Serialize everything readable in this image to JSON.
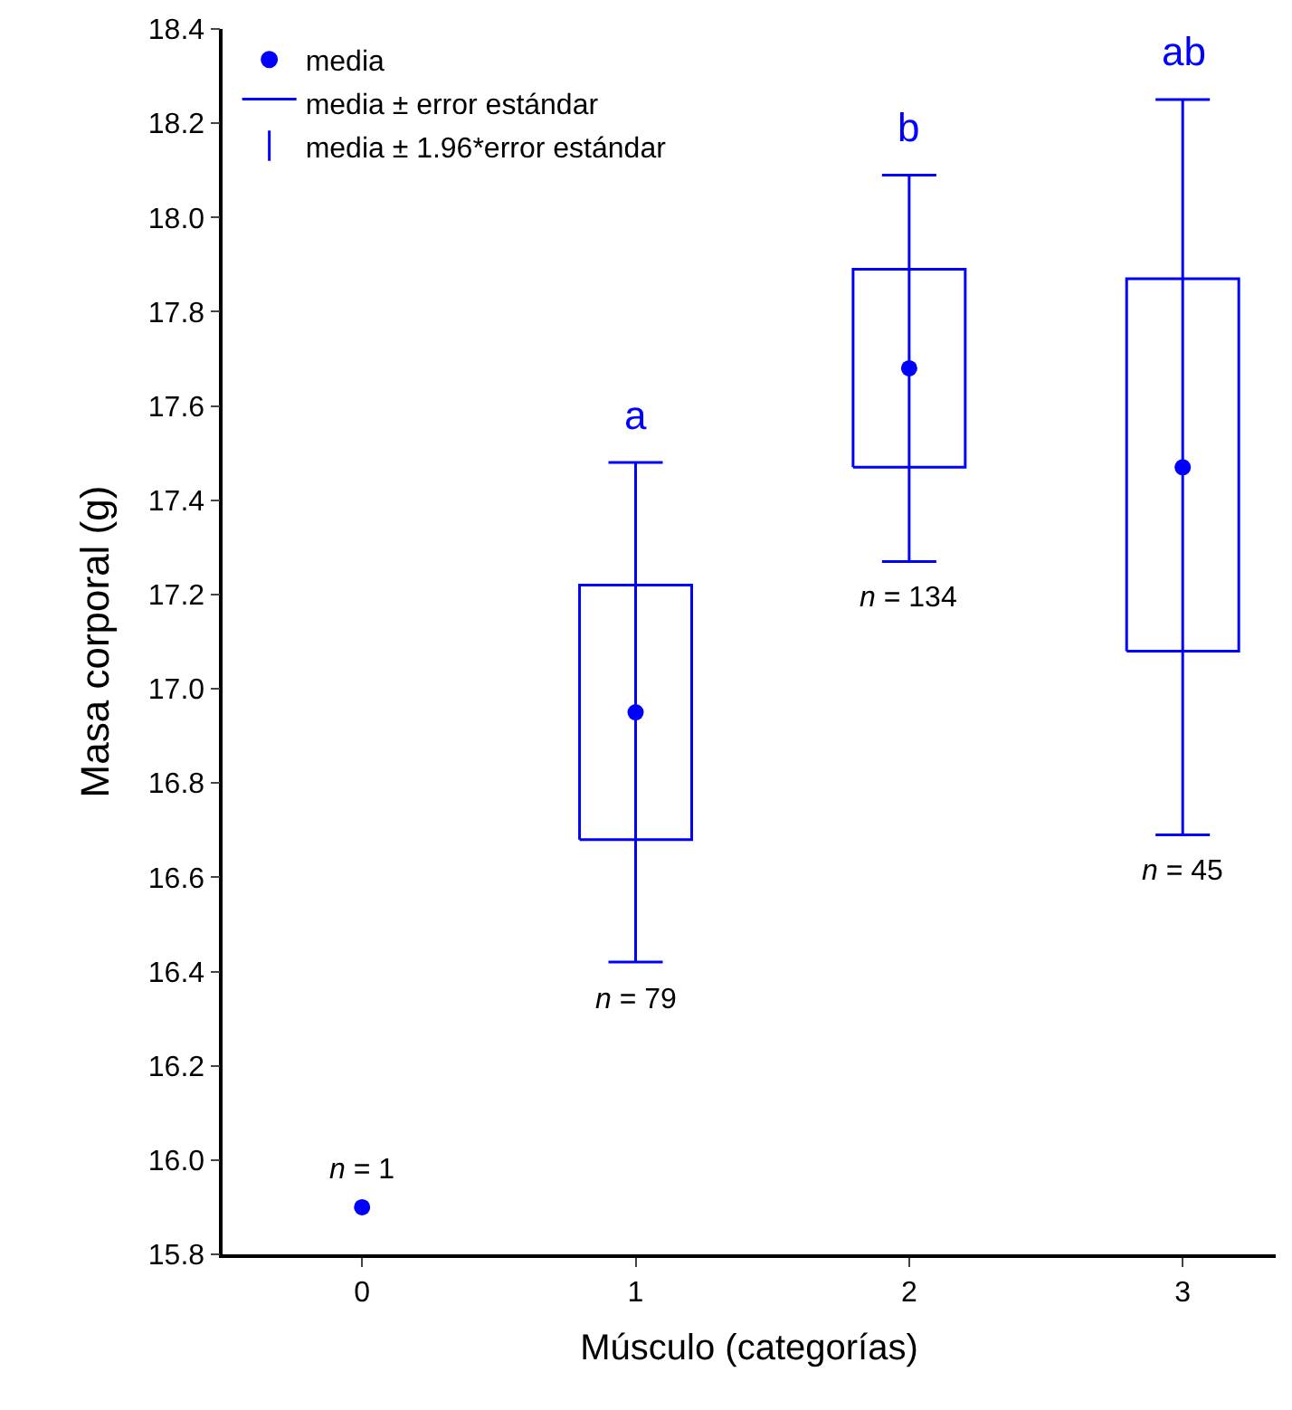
{
  "chart_data": {
    "type": "box",
    "xlabel": "Músculo (categorías)",
    "ylabel": "Masa corporal (g)",
    "categories": [
      "0",
      "1",
      "2",
      "3"
    ],
    "ylim": [
      15.8,
      18.4
    ],
    "yticks": [
      15.8,
      {
        "value": 16.0,
        "label": "16.0"
      },
      16.2,
      16.4,
      16.6,
      16.8,
      {
        "value": 17.0,
        "label": "17.0"
      },
      17.2,
      17.4,
      17.6,
      17.8,
      {
        "value": 18.0,
        "label": "18.0"
      },
      18.2,
      18.4
    ],
    "legend": "top left",
    "series": [
      {
        "name": "media",
        "type": "scatter",
        "marker": "circle",
        "color": "#0000ff",
        "values": [
          15.9,
          16.95,
          17.68,
          17.47
        ],
        "errors": [
          null,
          [
            16.42,
            17.48
          ],
          [
            17.27,
            18.09
          ],
          [
            16.69,
            18.25
          ]
        ]
      },
      {
        "name": "media ± error estándar",
        "color": "#0000ff",
        "boxes": [
          null,
          {
            "q1": 16.68,
            "q3": 17.22
          },
          {
            "q1": 17.47,
            "q3": 17.89
          },
          {
            "q1": 17.08,
            "q3": 17.87
          }
        ]
      },
      {
        "name": "media ± 1.96*error estándar",
        "type": "scatter",
        "marker": "none",
        "color": "#0000ff",
        "values": [
          null,
          null,
          null,
          null
        ]
      }
    ],
    "annotations": [
      "n = 1",
      "n = 79",
      "n = 134",
      "n = 45",
      "a",
      "b",
      "ab"
    ]
  }
}
